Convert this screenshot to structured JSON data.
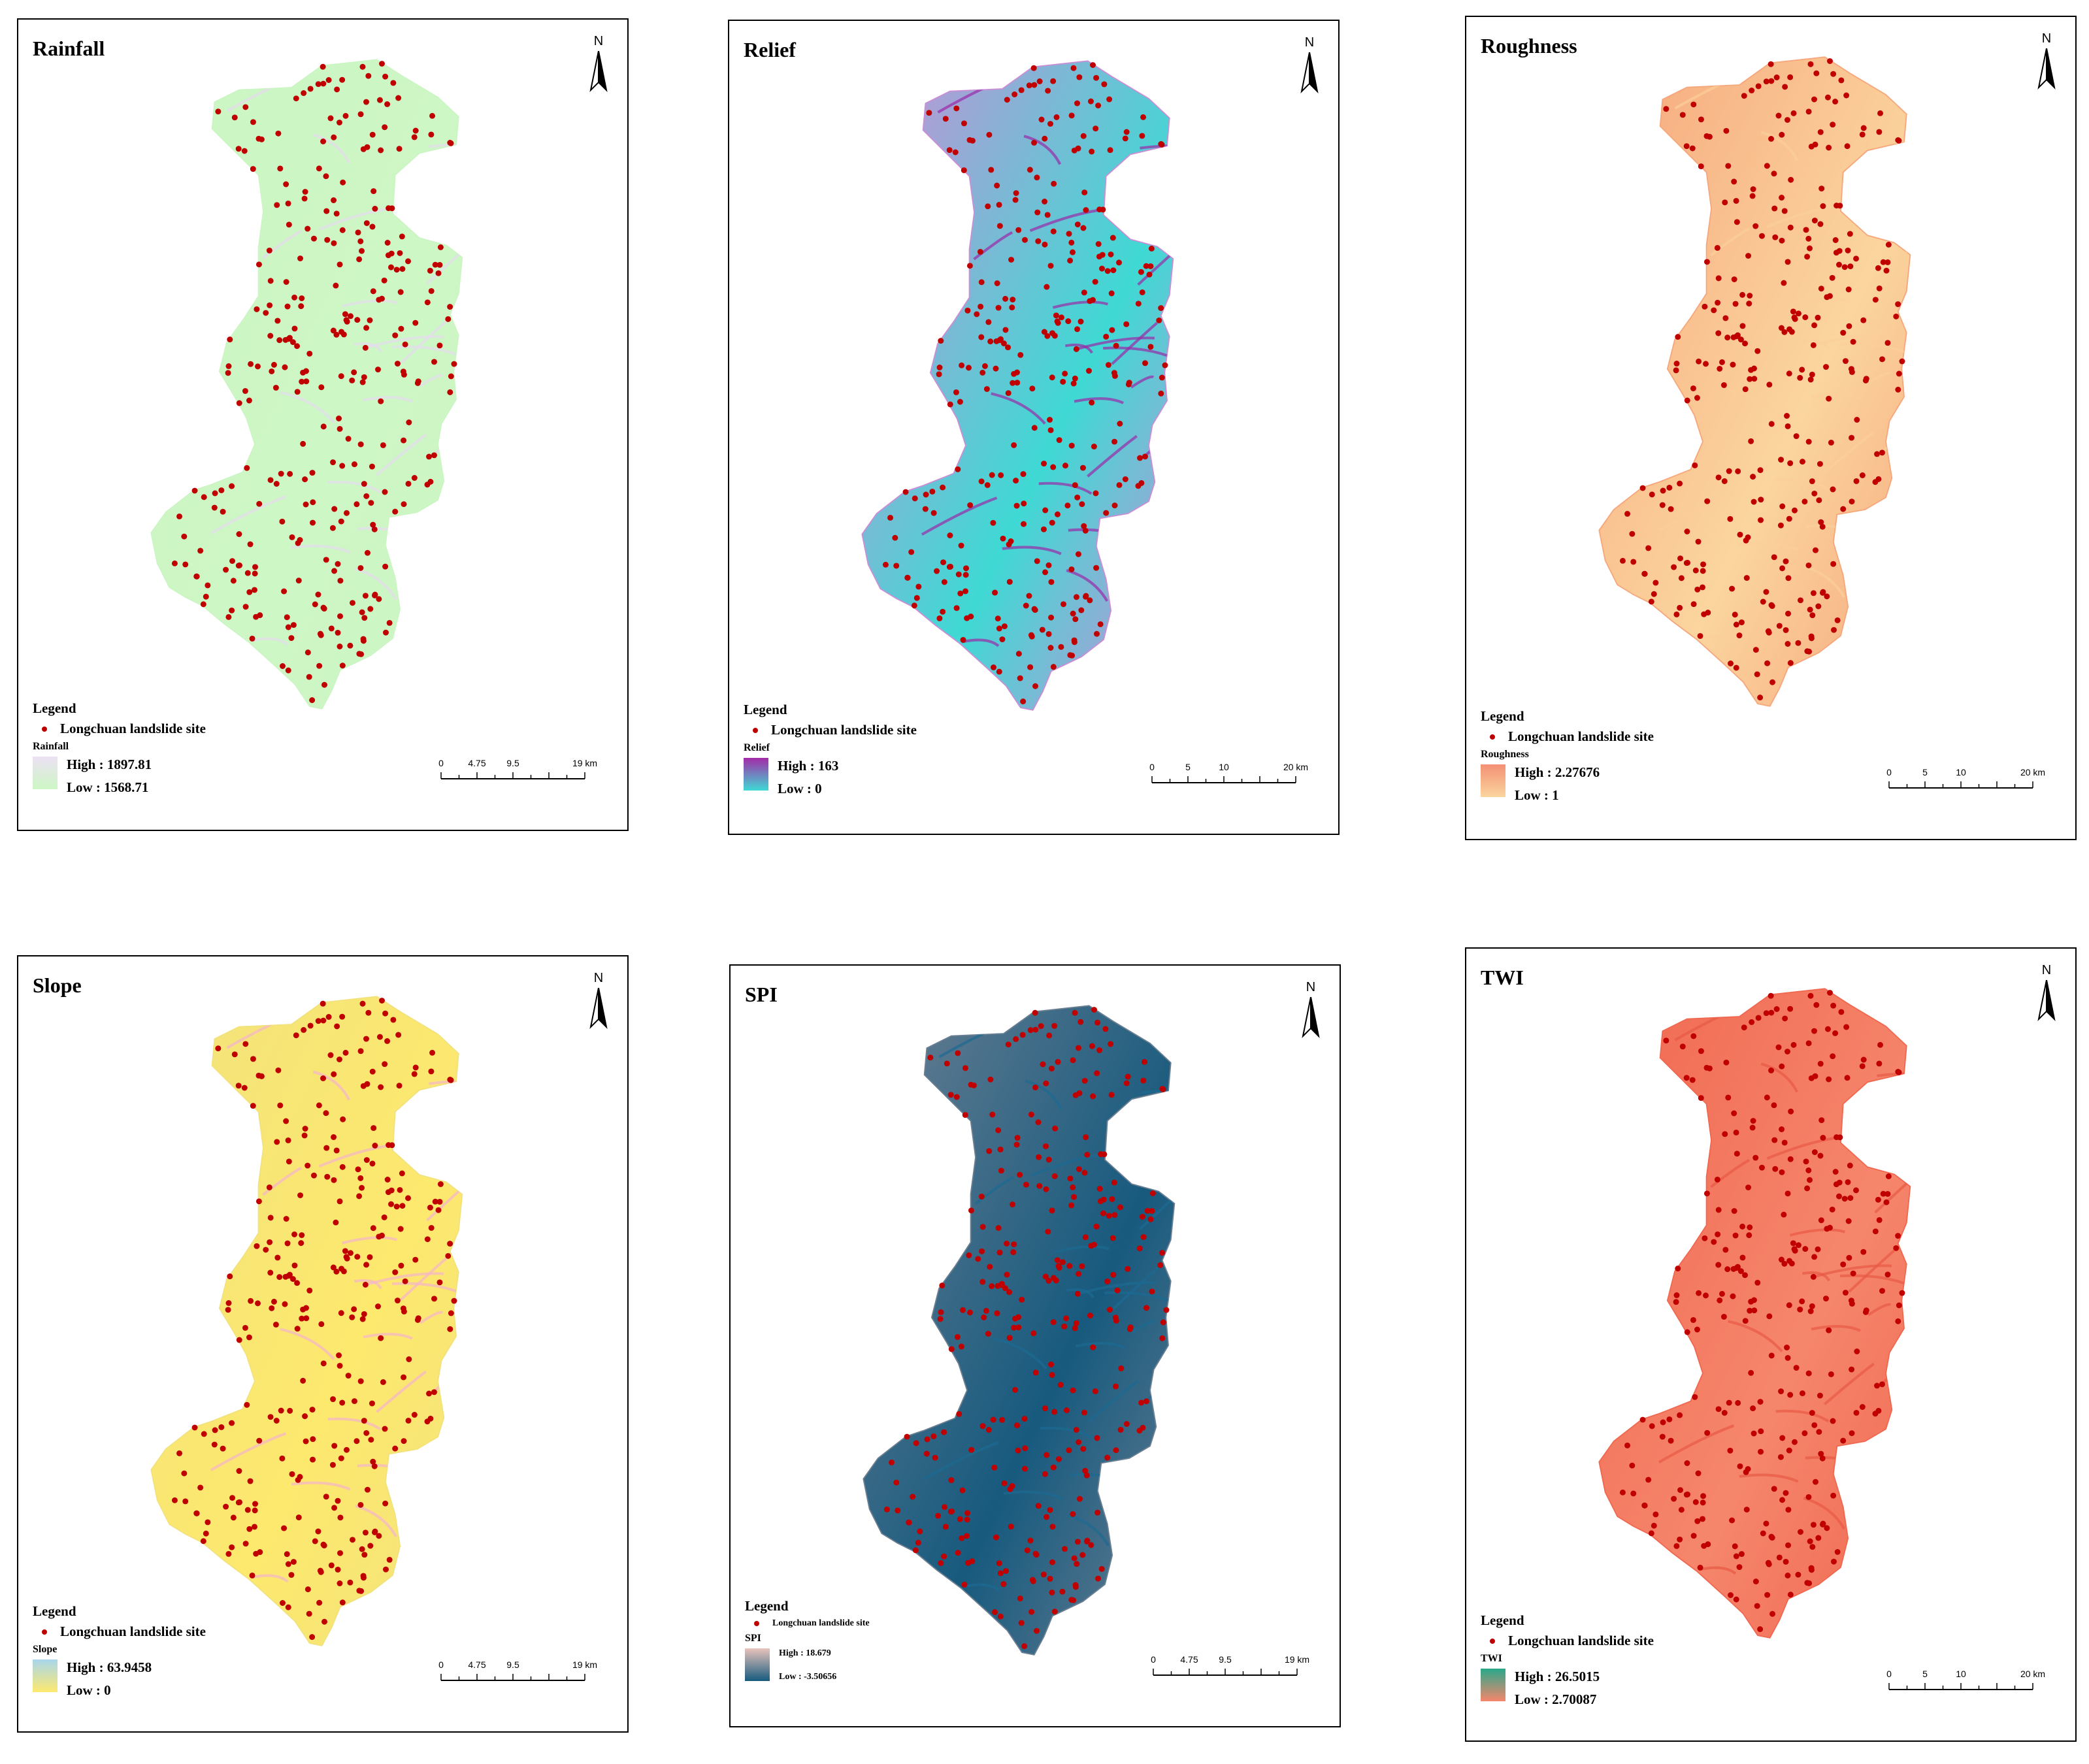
{
  "panels": [
    {
      "id": "rainfall",
      "title": "Rainfall",
      "north": "N",
      "legend": {
        "title": "Legend",
        "site_label": "Longchuan landslide site",
        "layer": "Rainfall",
        "high": "High : 1897.81",
        "low": "Low : 1568.71"
      },
      "colors": {
        "fill": "#ccf5c4",
        "low": "#cdf7c4",
        "high": "#ece0f4",
        "texture": "#e6dcf0",
        "point": "#c00000"
      },
      "scale": {
        "labels": [
          "0",
          "4.75",
          "9.5",
          "19 km"
        ]
      }
    },
    {
      "id": "relief",
      "title": "Relief",
      "north": "N",
      "legend": {
        "title": "Legend",
        "site_label": "Longchuan landslide site",
        "layer": "Relief",
        "high": "High : 163",
        "low": "Low : 0"
      },
      "colors": {
        "fill": "#c98fd6",
        "low": "#3fd9d4",
        "high": "#a32ba8",
        "texture": "#9a2aa8",
        "point": "#c00000"
      },
      "scale": {
        "labels": [
          "0",
          "5",
          "10",
          "20 km"
        ]
      }
    },
    {
      "id": "roughness",
      "title": "Roughness",
      "north": "N",
      "legend": {
        "title": "Legend",
        "site_label": "Longchuan landslide site",
        "layer": "Roughness",
        "high": "High : 2.27676",
        "low": "Low : 1"
      },
      "colors": {
        "fill": "#f6a77c",
        "low": "#fbd59e",
        "high": "#f39074",
        "texture": "#fbcf9a",
        "point": "#c00000"
      },
      "scale": {
        "labels": [
          "0",
          "5",
          "10",
          "20 km"
        ]
      }
    },
    {
      "id": "slope",
      "title": "Slope",
      "north": "N",
      "legend": {
        "title": "Legend",
        "site_label": "Longchuan landslide site",
        "layer": "Slope",
        "high": "High : 63.9458",
        "low": "Low : 0"
      },
      "colors": {
        "fill": "#f2e27c",
        "low": "#fde96e",
        "high": "#a8d6ec",
        "texture": "#f5b5cc",
        "point": "#c00000"
      },
      "scale": {
        "labels": [
          "0",
          "4.75",
          "9.5",
          "19 km"
        ]
      }
    },
    {
      "id": "spi",
      "title": "SPI",
      "north": "N",
      "legend": {
        "title": "Legend",
        "site_label": "Longchuan landslide site",
        "layer": "SPI",
        "high": "High : 18.679",
        "low": "Low : -3.50656"
      },
      "colors": {
        "fill": "#6a7f92",
        "low": "#175a7e",
        "high": "#e8c4bc",
        "texture": "#1d6a92",
        "point": "#c00000"
      },
      "scale": {
        "labels": [
          "0",
          "4.75",
          "9.5",
          "19 km"
        ]
      }
    },
    {
      "id": "twi",
      "title": "TWI",
      "north": "N",
      "legend": {
        "title": "Legend",
        "site_label": "Longchuan landslide site",
        "layer": "TWI",
        "high": "High : 26.5015",
        "low": "Low : 2.70087"
      },
      "colors": {
        "fill": "#f06850",
        "low": "#f5866c",
        "high": "#2aa88a",
        "texture": "#e85a45",
        "point": "#c00000"
      },
      "scale": {
        "labels": [
          "0",
          "5",
          "10",
          "20 km"
        ]
      }
    }
  ]
}
